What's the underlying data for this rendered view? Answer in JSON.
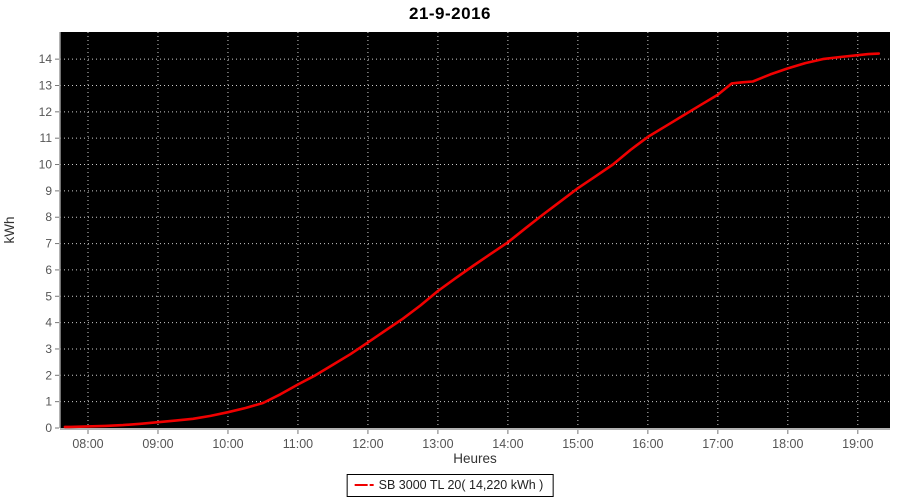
{
  "title": "21-9-2016",
  "legend": {
    "label": "SB 3000 TL 20( 14,220 kWh )",
    "marker_color": "#f00000"
  },
  "colors": {
    "page_bg": "#ffffff",
    "plot_bg": "#000000",
    "grid": "#cccccc",
    "series": "#f00000",
    "tick_label": "#555555",
    "axis_label": "#333333",
    "axis_line": "#999999",
    "title": "#000000"
  },
  "chart_data": {
    "type": "line",
    "title": "21-9-2016",
    "xlabel": "Heures",
    "ylabel": "kWh",
    "grid": true,
    "legend_position": "bottom",
    "xlim": [
      7.6,
      19.46
    ],
    "ylim": [
      0,
      15.03
    ],
    "x_tick_hours": [
      8,
      9,
      10,
      11,
      12,
      13,
      14,
      15,
      16,
      17,
      18,
      19
    ],
    "x_tick_labels": [
      "08:00",
      "09:00",
      "10:00",
      "11:00",
      "12:00",
      "13:00",
      "14:00",
      "15:00",
      "16:00",
      "17:00",
      "18:00",
      "19:00"
    ],
    "y_ticks": [
      0,
      1,
      2,
      3,
      4,
      5,
      6,
      7,
      8,
      9,
      10,
      11,
      12,
      13,
      14
    ],
    "series": [
      {
        "name": "SB 3000 TL 20( 14,220 kWh )",
        "color": "#f00000",
        "x": [
          7.67,
          7.75,
          8.0,
          8.25,
          8.5,
          8.75,
          9.0,
          9.25,
          9.5,
          9.75,
          10.0,
          10.25,
          10.5,
          10.75,
          11.0,
          11.25,
          11.5,
          11.75,
          12.0,
          12.25,
          12.5,
          12.75,
          13.0,
          13.25,
          13.5,
          13.75,
          14.0,
          14.25,
          14.5,
          14.75,
          15.0,
          15.25,
          15.5,
          15.75,
          16.0,
          16.25,
          16.5,
          16.75,
          17.0,
          17.2,
          17.35,
          17.5,
          17.75,
          18.0,
          18.25,
          18.5,
          18.75,
          19.0,
          19.15,
          19.3
        ],
        "y": [
          0.04,
          0.04,
          0.06,
          0.08,
          0.11,
          0.16,
          0.22,
          0.28,
          0.35,
          0.46,
          0.6,
          0.76,
          0.95,
          1.28,
          1.65,
          2.0,
          2.4,
          2.8,
          3.25,
          3.7,
          4.15,
          4.65,
          5.2,
          5.68,
          6.15,
          6.6,
          7.05,
          7.58,
          8.1,
          8.6,
          9.1,
          9.55,
          10.0,
          10.55,
          11.05,
          11.45,
          11.85,
          12.25,
          12.65,
          13.08,
          13.12,
          13.15,
          13.42,
          13.65,
          13.85,
          14.0,
          14.08,
          14.15,
          14.19,
          14.21
        ]
      }
    ]
  }
}
